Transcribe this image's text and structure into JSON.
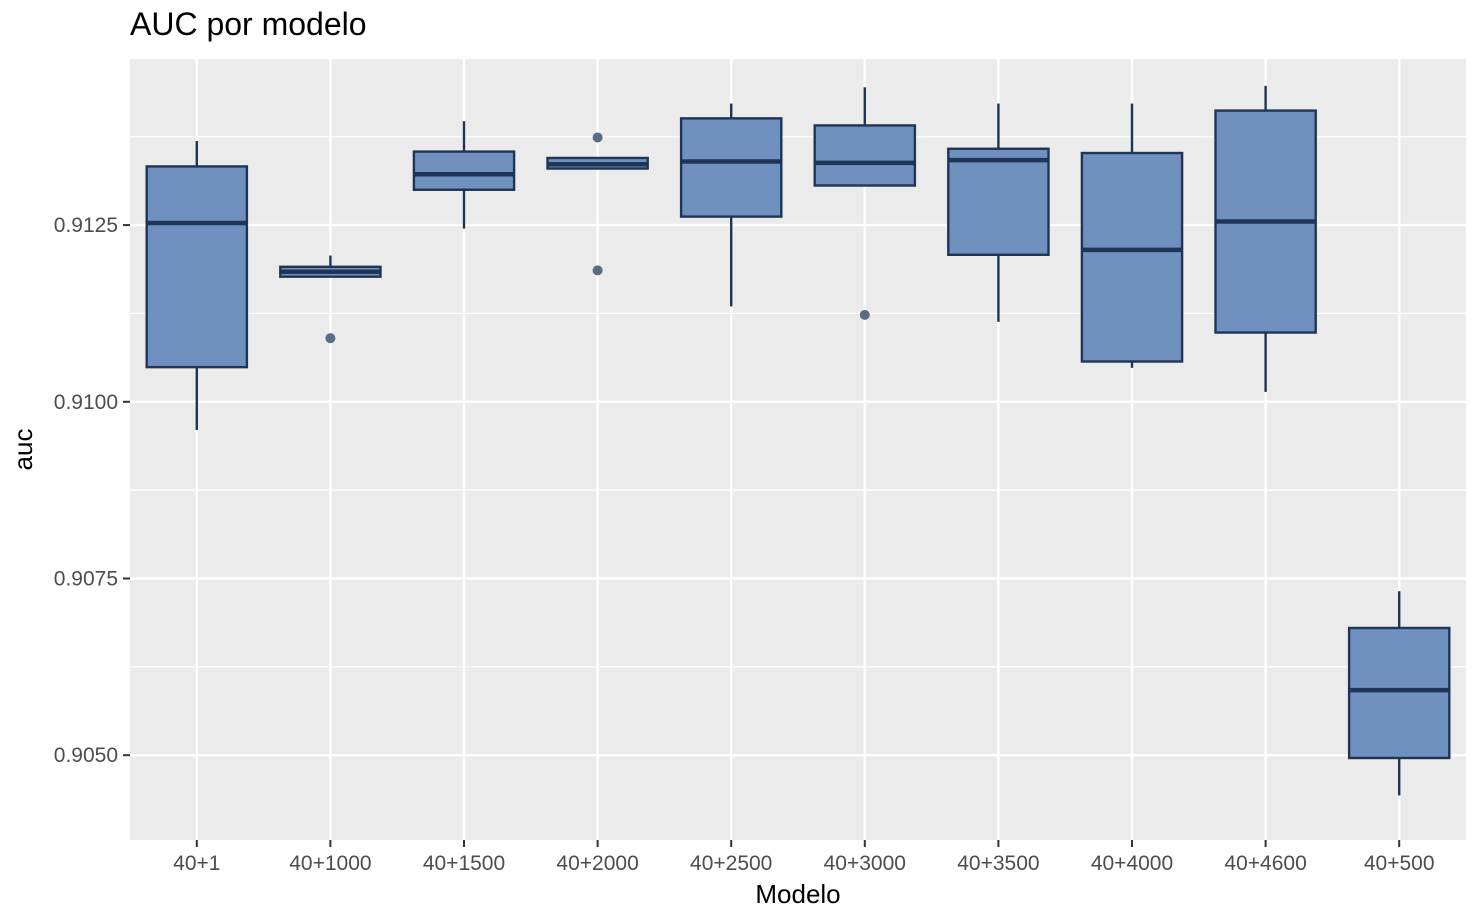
{
  "chart_data": {
    "type": "boxplot",
    "title": "AUC por modelo",
    "xlabel": "Modelo",
    "ylabel": "auc",
    "ylim": [
      0.9038,
      0.91485
    ],
    "y_ticks": [
      0.905,
      0.9075,
      0.91,
      0.9125
    ],
    "y_tick_labels": [
      "0.9050",
      "0.9075",
      "0.9100",
      "0.9125"
    ],
    "grid": true,
    "colors": {
      "panel_bg": "#ebebeb",
      "grid_major": "#ffffff",
      "box_fill": "#7090bf",
      "box_stroke": "#1f3556",
      "outlier": "#5a6b84"
    },
    "categories": [
      "40+1",
      "40+1000",
      "40+1500",
      "40+2000",
      "40+2500",
      "40+3000",
      "40+3500",
      "40+4000",
      "40+4600",
      "40+500"
    ],
    "boxes": [
      {
        "whisker_low": 0.9096,
        "q1": 0.91049,
        "median": 0.91253,
        "q3": 0.91333,
        "whisker_high": 0.91369,
        "outliers": []
      },
      {
        "whisker_low": 0.91176,
        "q1": 0.91177,
        "median": 0.91184,
        "q3": 0.91191,
        "whisker_high": 0.91207,
        "outliers": [
          0.9109
        ]
      },
      {
        "whisker_low": 0.91245,
        "q1": 0.913,
        "median": 0.91322,
        "q3": 0.91354,
        "whisker_high": 0.91397,
        "outliers": []
      },
      {
        "whisker_low": 0.9133,
        "q1": 0.9133,
        "median": 0.91336,
        "q3": 0.91345,
        "whisker_high": 0.91345,
        "outliers": [
          0.91374,
          0.91186
        ]
      },
      {
        "whisker_low": 0.91135,
        "q1": 0.91262,
        "median": 0.9134,
        "q3": 0.91401,
        "whisker_high": 0.91422,
        "outliers": []
      },
      {
        "whisker_low": 0.91306,
        "q1": 0.91306,
        "median": 0.91338,
        "q3": 0.91391,
        "whisker_high": 0.91445,
        "outliers": [
          0.91123
        ]
      },
      {
        "whisker_low": 0.91113,
        "q1": 0.91208,
        "median": 0.91342,
        "q3": 0.91358,
        "whisker_high": 0.91422,
        "outliers": []
      },
      {
        "whisker_low": 0.91048,
        "q1": 0.91057,
        "median": 0.91215,
        "q3": 0.91352,
        "whisker_high": 0.91422,
        "outliers": []
      },
      {
        "whisker_low": 0.91014,
        "q1": 0.91098,
        "median": 0.91255,
        "q3": 0.91412,
        "whisker_high": 0.91447,
        "outliers": []
      },
      {
        "whisker_low": 0.90443,
        "q1": 0.90496,
        "median": 0.90592,
        "q3": 0.9068,
        "whisker_high": 0.90732,
        "outliers": []
      }
    ]
  }
}
